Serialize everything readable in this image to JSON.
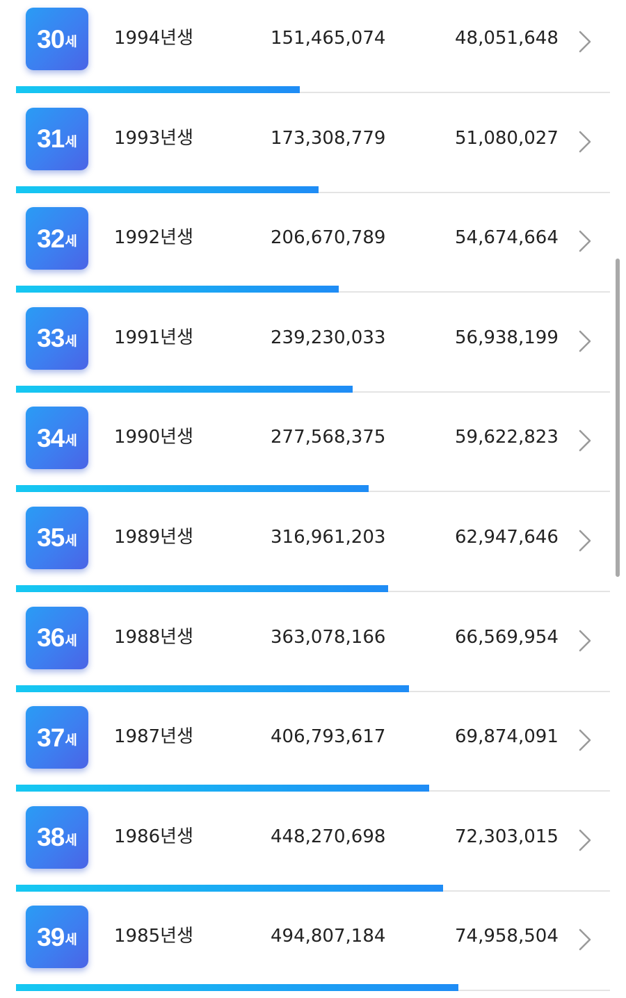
{
  "rows": [
    {
      "age": "30",
      "unit": "세",
      "birth": "1994년생",
      "total": "151,465,074",
      "monthly": "48,051,648",
      "progress": 0.478
    },
    {
      "age": "31",
      "unit": "세",
      "birth": "1993년생",
      "total": "173,308,779",
      "monthly": "51,080,027",
      "progress": 0.509
    },
    {
      "age": "32",
      "unit": "세",
      "birth": "1992년생",
      "total": "206,670,789",
      "monthly": "54,674,664",
      "progress": 0.543
    },
    {
      "age": "33",
      "unit": "세",
      "birth": "1991년생",
      "total": "239,230,033",
      "monthly": "56,938,199",
      "progress": 0.567
    },
    {
      "age": "34",
      "unit": "세",
      "birth": "1990년생",
      "total": "277,568,375",
      "monthly": "59,622,823",
      "progress": 0.594
    },
    {
      "age": "35",
      "unit": "세",
      "birth": "1989년생",
      "total": "316,961,203",
      "monthly": "62,947,646",
      "progress": 0.626
    },
    {
      "age": "36",
      "unit": "세",
      "birth": "1988년생",
      "total": "363,078,166",
      "monthly": "66,569,954",
      "progress": 0.662
    },
    {
      "age": "37",
      "unit": "세",
      "birth": "1987년생",
      "total": "406,793,617",
      "monthly": "69,874,091",
      "progress": 0.696
    },
    {
      "age": "38",
      "unit": "세",
      "birth": "1986년생",
      "total": "448,270,698",
      "monthly": "72,303,015",
      "progress": 0.719
    },
    {
      "age": "39",
      "unit": "세",
      "birth": "1985년생",
      "total": "494,807,184",
      "monthly": "74,958,504",
      "progress": 0.745
    }
  ],
  "icons": {
    "row_action": "chevron-right-icon"
  },
  "colors": {
    "badge_gradient_start": "#2a9cf5",
    "badge_gradient_end": "#4a64e6",
    "bar_gradient_start": "#16c8f2",
    "bar_gradient_end": "#1f8cf5",
    "track": "#e4e4e4",
    "chevron": "#9a9a9a",
    "text": "#222222"
  }
}
